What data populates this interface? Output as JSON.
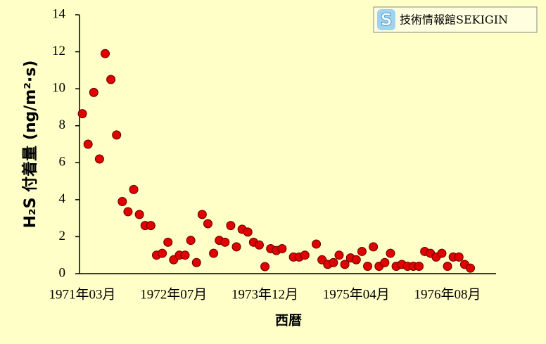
{
  "chart_data": {
    "type": "scatter",
    "ylabel": "H₂S 付着量 (ng/m²·s)",
    "xlabel": "西暦",
    "watermark_icon": "S",
    "watermark": "技術情報館SEKIGIN",
    "categories": [
      "1971年03月",
      null,
      null,
      null,
      null,
      null,
      null,
      null,
      null,
      null,
      null,
      null,
      null,
      null,
      null,
      null,
      "1972年07月",
      null,
      null,
      null,
      null,
      null,
      null,
      null,
      null,
      null,
      null,
      null,
      null,
      null,
      null,
      null,
      "1973年12月",
      null,
      null,
      null,
      null,
      null,
      null,
      null,
      null,
      null,
      null,
      null,
      null,
      null,
      null,
      null,
      "1975年04月",
      null,
      null,
      null,
      null,
      null,
      null,
      null,
      null,
      null,
      null,
      null,
      null,
      null,
      null,
      null,
      "1976年08月",
      null,
      null,
      null,
      null,
      null,
      null,
      null,
      null
    ],
    "values": [
      8.65,
      7.0,
      9.8,
      6.2,
      11.9,
      10.5,
      7.5,
      3.9,
      3.35,
      4.55,
      3.2,
      2.6,
      2.6,
      1.0,
      1.1,
      1.7,
      0.75,
      1.0,
      1.0,
      1.8,
      0.6,
      3.2,
      2.7,
      1.1,
      1.8,
      1.7,
      2.6,
      1.45,
      2.4,
      2.25,
      1.7,
      1.55,
      0.38,
      1.35,
      1.25,
      1.35,
      null,
      0.9,
      0.9,
      1.0,
      null,
      1.6,
      0.75,
      0.5,
      0.6,
      1.0,
      0.5,
      0.85,
      0.75,
      1.2,
      0.4,
      1.45,
      0.4,
      0.6,
      1.1,
      0.4,
      0.5,
      0.4,
      0.4,
      0.4,
      1.2,
      1.1,
      0.9,
      1.1,
      0.4,
      0.9,
      0.9,
      0.5,
      0.3,
      null,
      null,
      null,
      null
    ],
    "color": "#e00000",
    "ylim": [
      0,
      14
    ],
    "yticks": [
      0,
      2,
      4,
      6,
      8,
      10,
      12,
      14
    ]
  }
}
